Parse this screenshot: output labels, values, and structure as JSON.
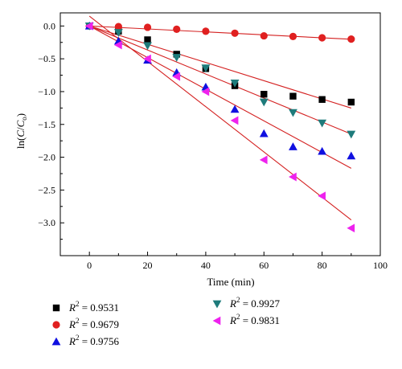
{
  "chart_data": {
    "type": "scatter",
    "title": "",
    "xlabel": "Time (min)",
    "ylabel": "ln(C/C0)",
    "xlim": [
      -10,
      100
    ],
    "ylim": [
      -3.5,
      0.2
    ],
    "xticks": [
      0,
      20,
      40,
      60,
      80,
      100
    ],
    "yticks": [
      0.0,
      -0.5,
      -1.0,
      -1.5,
      -2.0,
      -2.5,
      -3.0
    ],
    "grid": false,
    "legend_position": "bottom",
    "x": [
      0,
      10,
      20,
      30,
      40,
      50,
      60,
      70,
      80,
      90
    ],
    "series": [
      {
        "label_var": "R",
        "label_exp": "2",
        "label_value": "= 0.9531",
        "marker": "square",
        "color": "#000000",
        "values": [
          0.0,
          -0.08,
          -0.21,
          -0.43,
          -0.65,
          -0.91,
          -1.04,
          -1.07,
          -1.12,
          -1.16
        ],
        "fit": {
          "slope": -0.0139,
          "intercept": 0.0
        }
      },
      {
        "label_var": "R",
        "label_exp": "2",
        "label_value": "= 0.9679",
        "marker": "circle",
        "color": "#e02020",
        "values": [
          0.0,
          -0.01,
          -0.02,
          -0.05,
          -0.08,
          -0.11,
          -0.15,
          -0.16,
          -0.18,
          -0.2
        ],
        "fit": {
          "slope": -0.00225,
          "intercept": 0.0
        }
      },
      {
        "label_var": "R",
        "label_exp": "2",
        "label_value": "= 0.9756",
        "marker": "triangle-up",
        "color": "#1010e0",
        "values": [
          0.0,
          -0.23,
          -0.52,
          -0.71,
          -0.93,
          -1.27,
          -1.64,
          -1.84,
          -1.91,
          -1.98
        ],
        "fit": {
          "slope": -0.0241,
          "intercept": 0.0
        }
      },
      {
        "label_var": "R",
        "label_exp": "2",
        "label_value": "= 0.9927",
        "marker": "triangle-down",
        "color": "#1e7b7b",
        "values": [
          0.0,
          -0.1,
          -0.3,
          -0.48,
          -0.64,
          -0.87,
          -1.16,
          -1.32,
          -1.48,
          -1.65
        ],
        "fit": {
          "slope": -0.0183,
          "intercept": 0.0
        }
      },
      {
        "label_var": "R",
        "label_exp": "2",
        "label_value": "= 0.9831",
        "marker": "triangle-left",
        "color": "#ee22ee",
        "values": [
          0.0,
          -0.29,
          -0.5,
          -0.77,
          -1.0,
          -1.44,
          -2.04,
          -2.3,
          -2.59,
          -3.08
        ],
        "fit": {
          "slope": -0.0345,
          "intercept": 0.15
        }
      }
    ]
  }
}
